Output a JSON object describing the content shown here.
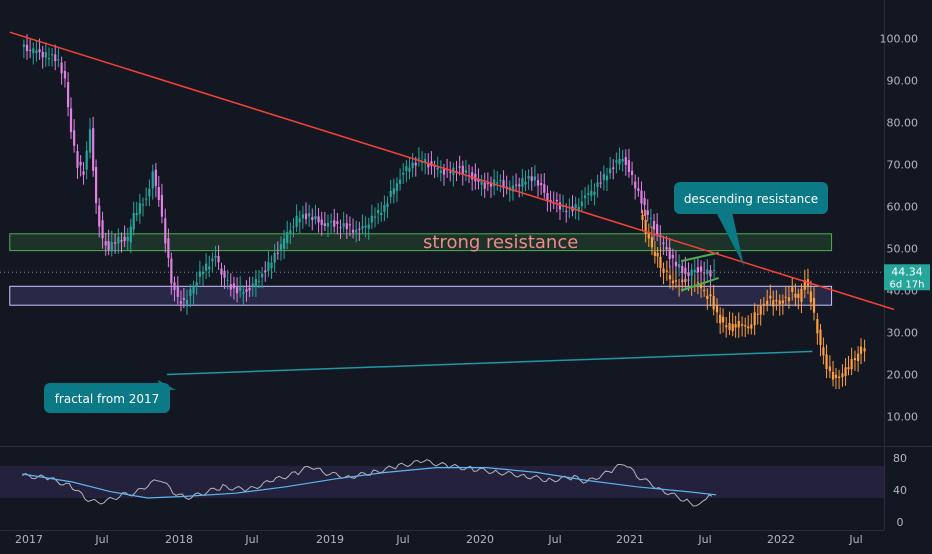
{
  "chart_data": [
    {
      "type": "candlestick",
      "panel": "price",
      "y_axis": {
        "ylim": [
          0,
          108
        ],
        "ticks": [
          10,
          20,
          30,
          40,
          50,
          60,
          70,
          80,
          90,
          100
        ],
        "tick_labels": [
          "10.00",
          "20.00",
          "30.00",
          "40.00",
          "50.00",
          "60.00",
          "70.00",
          "80.00",
          "90.00",
          "100.00"
        ],
        "side": "right"
      },
      "x_axis": {
        "tick_labels": [
          "2017",
          "Jul",
          "2018",
          "Jul",
          "2019",
          "Jul",
          "2020",
          "Jul",
          "2021",
          "Jul",
          "2022",
          "Jul"
        ]
      },
      "grid": false,
      "current_price": {
        "value": 44.34,
        "label": "44.34",
        "countdown": "6d 17h"
      },
      "series": [
        {
          "name": "price",
          "colors": {
            "up": "#26a69a",
            "down": "#e080e0"
          },
          "points": [
            [
              "2016-12-15",
              98
            ],
            [
              "2017-01-15",
              97
            ],
            [
              "2017-02-15",
              96
            ],
            [
              "2017-03-15",
              95
            ],
            [
              "2017-04-01",
              90
            ],
            [
              "2017-04-15",
              78
            ],
            [
              "2017-05-01",
              70
            ],
            [
              "2017-05-15",
              68
            ],
            [
              "2017-06-01",
              78
            ],
            [
              "2017-06-15",
              60
            ],
            [
              "2017-07-01",
              52
            ],
            [
              "2017-07-15",
              50
            ],
            [
              "2017-08-01",
              52
            ],
            [
              "2017-09-01",
              52
            ],
            [
              "2017-09-15",
              58
            ],
            [
              "2017-10-15",
              62
            ],
            [
              "2017-11-01",
              68
            ],
            [
              "2017-11-15",
              62
            ],
            [
              "2017-12-01",
              52
            ],
            [
              "2017-12-15",
              42
            ],
            [
              "2018-01-01",
              38
            ],
            [
              "2018-01-15",
              37
            ],
            [
              "2018-02-01",
              40
            ],
            [
              "2018-03-01",
              45
            ],
            [
              "2018-04-01",
              48
            ],
            [
              "2018-04-15",
              44
            ],
            [
              "2018-05-15",
              40
            ],
            [
              "2018-06-15",
              40
            ],
            [
              "2018-07-15",
              43
            ],
            [
              "2018-08-15",
              47
            ],
            [
              "2018-09-15",
              52
            ],
            [
              "2018-10-15",
              57
            ],
            [
              "2018-11-15",
              58
            ],
            [
              "2018-12-15",
              56
            ],
            [
              "2019-01-15",
              56
            ],
            [
              "2019-02-15",
              55
            ],
            [
              "2019-03-15",
              54
            ],
            [
              "2019-04-15",
              57
            ],
            [
              "2019-05-15",
              60
            ],
            [
              "2019-06-15",
              66
            ],
            [
              "2019-07-15",
              70
            ],
            [
              "2019-08-15",
              71
            ],
            [
              "2019-09-15",
              69
            ],
            [
              "2019-10-15",
              68
            ],
            [
              "2019-11-15",
              69
            ],
            [
              "2019-12-15",
              67
            ],
            [
              "2020-01-15",
              65
            ],
            [
              "2020-02-15",
              66
            ],
            [
              "2020-03-15",
              64
            ],
            [
              "2020-04-15",
              66
            ],
            [
              "2020-05-15",
              67
            ],
            [
              "2020-06-15",
              62
            ],
            [
              "2020-07-15",
              60
            ],
            [
              "2020-08-15",
              59
            ],
            [
              "2020-09-15",
              62
            ],
            [
              "2020-10-15",
              65
            ],
            [
              "2020-11-15",
              69
            ],
            [
              "2020-12-15",
              72
            ],
            [
              "2021-01-15",
              65
            ],
            [
              "2021-02-15",
              58
            ],
            [
              "2021-03-15",
              52
            ],
            [
              "2021-04-15",
              47
            ],
            [
              "2021-05-15",
              44
            ],
            [
              "2021-06-15",
              45
            ],
            [
              "2021-07-15",
              44
            ],
            [
              "2021-07-25",
              44.34
            ]
          ]
        },
        {
          "name": "fractal",
          "color": "#ff9e3d",
          "points": [
            [
              "2021-01-25",
              58
            ],
            [
              "2021-02-10",
              54
            ],
            [
              "2021-02-25",
              50
            ],
            [
              "2021-03-15",
              46
            ],
            [
              "2021-04-01",
              44
            ],
            [
              "2021-04-15",
              42
            ],
            [
              "2021-05-15",
              42
            ],
            [
              "2021-06-15",
              41
            ],
            [
              "2021-07-15",
              38
            ],
            [
              "2021-08-01",
              34
            ],
            [
              "2021-08-15",
              32
            ],
            [
              "2021-09-01",
              31
            ],
            [
              "2021-09-15",
              32
            ],
            [
              "2021-10-01",
              32
            ],
            [
              "2021-10-15",
              31
            ],
            [
              "2021-11-01",
              34
            ],
            [
              "2021-11-15",
              36
            ],
            [
              "2021-12-01",
              38
            ],
            [
              "2021-12-15",
              37
            ],
            [
              "2022-01-01",
              37
            ],
            [
              "2022-01-15",
              38
            ],
            [
              "2022-02-01",
              40
            ],
            [
              "2022-02-15",
              38
            ],
            [
              "2022-03-01",
              43
            ],
            [
              "2022-03-15",
              38
            ],
            [
              "2022-04-01",
              30
            ],
            [
              "2022-04-15",
              24
            ],
            [
              "2022-05-01",
              20
            ],
            [
              "2022-05-15",
              19
            ],
            [
              "2022-06-01",
              20
            ],
            [
              "2022-06-15",
              22
            ],
            [
              "2022-07-01",
              24
            ],
            [
              "2022-07-15",
              26
            ],
            [
              "2022-07-25",
              27
            ]
          ]
        }
      ],
      "annotations": {
        "strong_resistance": {
          "text": "strong resistance",
          "y_range": [
            49.5,
            53.5
          ],
          "x_range": [
            "2016-11-15",
            "2022-05-01"
          ]
        },
        "support_zone": {
          "y_range": [
            36.5,
            41
          ],
          "x_range": [
            "2016-11-15",
            "2022-05-01"
          ]
        },
        "descending_line": {
          "from": [
            "2016-11-15",
            101.5
          ],
          "to": [
            "2022-09-30",
            35.5
          ]
        },
        "fractal_line": {
          "from": [
            "2017-12-01",
            20
          ],
          "to": [
            "2022-03-15",
            25.5
          ]
        },
        "callouts": [
          {
            "text": "descending resistance"
          },
          {
            "text": "fractal from 2017"
          }
        ]
      }
    },
    {
      "type": "line",
      "panel": "rsi",
      "y_axis": {
        "ylim": [
          0,
          90
        ],
        "ticks": [
          0,
          40,
          80
        ],
        "tick_labels": [
          "0",
          "40",
          "80"
        ]
      },
      "band": [
        30,
        70
      ],
      "series": [
        {
          "name": "rsi",
          "color": "#b2b5be",
          "points": [
            [
              "2016-12-15",
              58
            ],
            [
              "2017-02-15",
              55
            ],
            [
              "2017-04-15",
              44
            ],
            [
              "2017-05-15",
              30
            ],
            [
              "2017-06-15",
              24
            ],
            [
              "2017-07-15",
              28
            ],
            [
              "2017-08-15",
              34
            ],
            [
              "2017-09-15",
              36
            ],
            [
              "2017-10-15",
              46
            ],
            [
              "2017-11-15",
              54
            ],
            [
              "2017-12-15",
              38
            ],
            [
              "2018-01-15",
              30
            ],
            [
              "2018-02-15",
              34
            ],
            [
              "2018-04-15",
              44
            ],
            [
              "2018-06-15",
              40
            ],
            [
              "2018-08-15",
              52
            ],
            [
              "2018-10-15",
              62
            ],
            [
              "2018-11-15",
              70
            ],
            [
              "2018-12-15",
              62
            ],
            [
              "2019-02-15",
              56
            ],
            [
              "2019-04-15",
              62
            ],
            [
              "2019-06-15",
              70
            ],
            [
              "2019-08-15",
              76
            ],
            [
              "2019-10-15",
              70
            ],
            [
              "2019-12-15",
              66
            ],
            [
              "2020-02-15",
              62
            ],
            [
              "2020-04-15",
              58
            ],
            [
              "2020-06-15",
              52
            ],
            [
              "2020-08-15",
              56
            ],
            [
              "2020-09-15",
              50
            ],
            [
              "2020-11-15",
              64
            ],
            [
              "2020-12-15",
              74
            ],
            [
              "2021-01-15",
              58
            ],
            [
              "2021-03-15",
              40
            ],
            [
              "2021-05-15",
              26
            ],
            [
              "2021-06-15",
              20
            ],
            [
              "2021-07-01",
              28
            ],
            [
              "2021-07-15",
              34
            ],
            [
              "2021-07-25",
              34
            ]
          ]
        },
        {
          "name": "rsi-ma",
          "color": "#5fb3f0",
          "points": [
            [
              "2016-12-15",
              60
            ],
            [
              "2017-04-15",
              50
            ],
            [
              "2017-07-15",
              38
            ],
            [
              "2017-10-15",
              30
            ],
            [
              "2018-01-15",
              32
            ],
            [
              "2018-05-15",
              36
            ],
            [
              "2018-09-15",
              44
            ],
            [
              "2019-01-15",
              54
            ],
            [
              "2019-05-15",
              62
            ],
            [
              "2019-09-15",
              68
            ],
            [
              "2020-01-15",
              68
            ],
            [
              "2020-05-15",
              62
            ],
            [
              "2020-09-15",
              52
            ],
            [
              "2021-01-15",
              44
            ],
            [
              "2021-05-15",
              38
            ],
            [
              "2021-07-25",
              34
            ]
          ]
        }
      ]
    }
  ]
}
